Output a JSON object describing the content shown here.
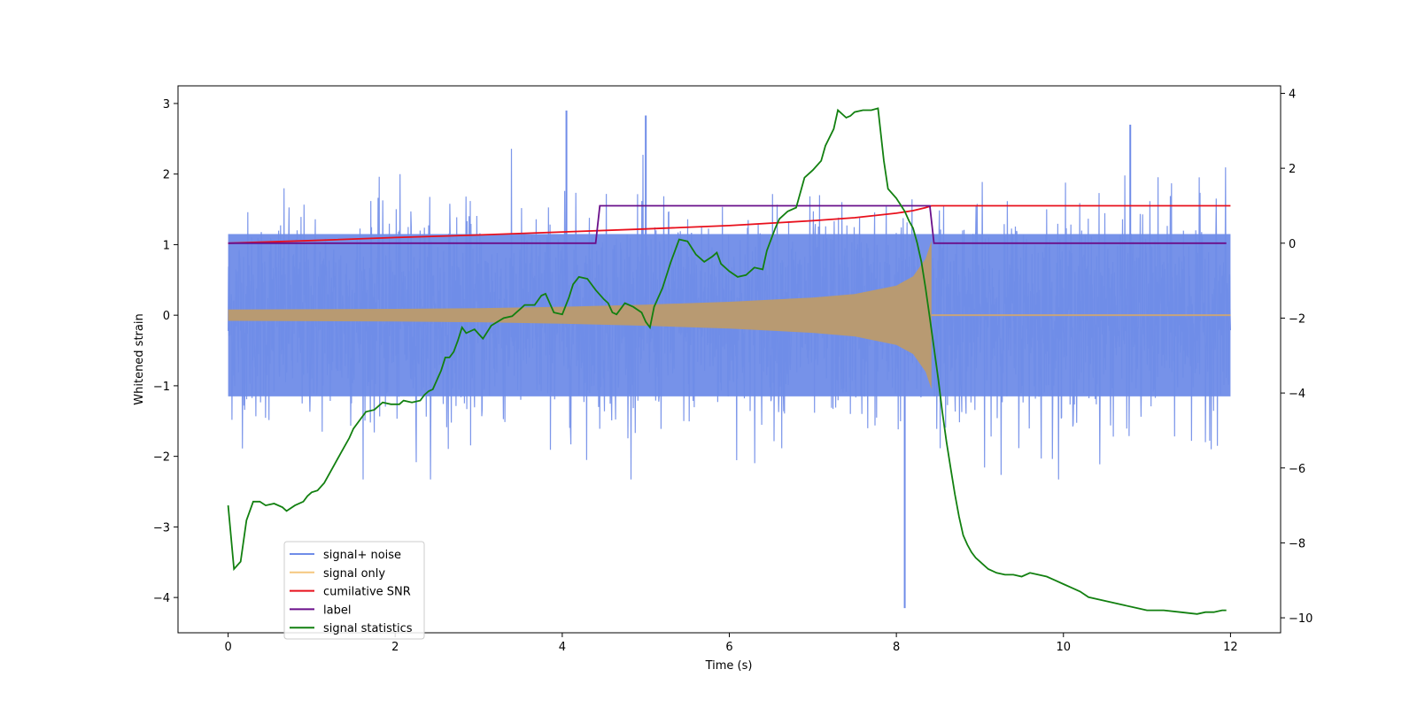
{
  "chart_data": {
    "type": "line",
    "xlabel": "Time (s)",
    "ylabel": "Whitened strain",
    "xlim": [
      -0.6,
      12.6
    ],
    "ylim": [
      -4.5,
      3.25
    ],
    "y2lim": [
      -10.4,
      4.2
    ],
    "x_ticks": [
      0,
      2,
      4,
      6,
      8,
      10,
      12
    ],
    "y_ticks": [
      -4,
      -3,
      -2,
      -1,
      0,
      1,
      2,
      3
    ],
    "y2_ticks": [
      -10,
      -8,
      -6,
      -4,
      -2,
      0,
      2,
      4
    ],
    "x_tick_labels": [
      "0",
      "2",
      "4",
      "6",
      "8",
      "10",
      "12"
    ],
    "y_tick_labels": [
      "−4",
      "−3",
      "−2",
      "−1",
      "0",
      "1",
      "2",
      "3"
    ],
    "y2_tick_labels": [
      "−10",
      "−8",
      "−6",
      "−4",
      "−2",
      "0",
      "2",
      "4"
    ],
    "legend_position": "lower-left",
    "series": [
      {
        "name": "signal+ noise",
        "axis": "left",
        "color": "#6f8ce8",
        "kind": "noisy-band",
        "x_range": [
          0,
          12
        ],
        "band_low": -1.15,
        "band_high": 1.15,
        "spike_max": 2.9,
        "spike_min": -4.15,
        "notable_peaks": [
          {
            "x": 4.05,
            "y": 2.9
          },
          {
            "x": 5.0,
            "y": 2.83
          },
          {
            "x": 8.1,
            "y": -4.15
          },
          {
            "x": 10.8,
            "y": 2.7
          }
        ]
      },
      {
        "name": "signal only",
        "axis": "left",
        "color": "#e0a050",
        "kind": "chirp-envelope",
        "envelope": {
          "x": [
            0,
            1,
            2,
            3,
            4,
            5,
            6,
            7,
            7.5,
            8,
            8.2,
            8.35,
            8.42
          ],
          "amp": [
            0.08,
            0.085,
            0.09,
            0.1,
            0.12,
            0.15,
            0.19,
            0.25,
            0.3,
            0.42,
            0.55,
            0.8,
            1.05
          ]
        },
        "post_merger_value": 0.0,
        "post_merger_x": [
          8.42,
          12
        ]
      },
      {
        "name": "cumilative SNR",
        "axis": "right",
        "color": "#e8101c",
        "x": [
          0,
          1,
          2,
          3,
          4,
          5,
          6,
          7,
          7.5,
          8,
          8.2,
          8.35,
          8.42,
          8.43,
          12
        ],
        "y": [
          0,
          0.07,
          0.15,
          0.22,
          0.3,
          0.38,
          0.47,
          0.6,
          0.68,
          0.8,
          0.87,
          0.95,
          1.0,
          1.0,
          1.0
        ]
      },
      {
        "name": "label",
        "axis": "right",
        "color": "#6a0f8a",
        "x": [
          0,
          4.4,
          4.45,
          8.4,
          8.45,
          11.95
        ],
        "y": [
          0,
          0,
          1,
          1,
          0,
          0
        ]
      },
      {
        "name": "signal statistics",
        "axis": "right",
        "color": "#128010",
        "x": [
          0,
          0.07,
          0.15,
          0.22,
          0.3,
          0.38,
          0.45,
          0.55,
          0.65,
          0.7,
          0.8,
          0.9,
          0.95,
          1.0,
          1.07,
          1.15,
          1.25,
          1.35,
          1.45,
          1.5,
          1.6,
          1.65,
          1.75,
          1.85,
          1.95,
          2.05,
          2.1,
          2.2,
          2.3,
          2.35,
          2.4,
          2.45,
          2.55,
          2.6,
          2.65,
          2.7,
          2.75,
          2.8,
          2.85,
          2.95,
          3.05,
          3.15,
          3.3,
          3.4,
          3.45,
          3.5,
          3.55,
          3.6,
          3.67,
          3.75,
          3.8,
          3.9,
          4.0,
          4.08,
          4.13,
          4.2,
          4.3,
          4.4,
          4.5,
          4.55,
          4.6,
          4.65,
          4.75,
          4.85,
          4.95,
          5.0,
          5.05,
          5.1,
          5.2,
          5.3,
          5.4,
          5.5,
          5.6,
          5.7,
          5.8,
          5.85,
          5.9,
          6.0,
          6.1,
          6.2,
          6.3,
          6.4,
          6.45,
          6.55,
          6.6,
          6.7,
          6.8,
          6.9,
          7.0,
          7.1,
          7.15,
          7.25,
          7.3,
          7.4,
          7.45,
          7.5,
          7.6,
          7.7,
          7.78,
          7.85,
          7.9,
          8.0,
          8.1,
          8.15,
          8.2,
          8.25,
          8.3,
          8.35,
          8.4,
          8.45,
          8.5,
          8.55,
          8.6,
          8.65,
          8.7,
          8.75,
          8.8,
          8.85,
          8.9,
          8.95,
          9.0,
          9.05,
          9.1,
          9.2,
          9.3,
          9.4,
          9.5,
          9.6,
          9.7,
          9.8,
          9.9,
          10.0,
          10.1,
          10.2,
          10.3,
          10.5,
          10.7,
          10.9,
          11.0,
          11.2,
          11.4,
          11.6,
          11.7,
          11.8,
          11.9,
          11.95
        ],
        "y": [
          -7.0,
          -8.7,
          -8.5,
          -7.4,
          -6.9,
          -6.9,
          -7.0,
          -6.95,
          -7.05,
          -7.15,
          -7.0,
          -6.9,
          -6.75,
          -6.65,
          -6.6,
          -6.4,
          -6.0,
          -5.6,
          -5.2,
          -4.95,
          -4.65,
          -4.5,
          -4.45,
          -4.25,
          -4.3,
          -4.3,
          -4.2,
          -4.25,
          -4.2,
          -4.05,
          -3.95,
          -3.9,
          -3.4,
          -3.05,
          -3.05,
          -2.9,
          -2.6,
          -2.25,
          -2.4,
          -2.3,
          -2.55,
          -2.2,
          -2.0,
          -1.95,
          -1.85,
          -1.75,
          -1.65,
          -1.65,
          -1.65,
          -1.4,
          -1.35,
          -1.85,
          -1.9,
          -1.45,
          -1.1,
          -0.9,
          -0.95,
          -1.25,
          -1.5,
          -1.6,
          -1.85,
          -1.9,
          -1.6,
          -1.7,
          -1.85,
          -2.1,
          -2.25,
          -1.7,
          -1.2,
          -0.5,
          0.1,
          0.05,
          -0.3,
          -0.5,
          -0.35,
          -0.25,
          -0.55,
          -0.75,
          -0.9,
          -0.85,
          -0.65,
          -0.7,
          -0.2,
          0.4,
          0.65,
          0.85,
          0.95,
          1.75,
          1.95,
          2.2,
          2.6,
          3.05,
          3.55,
          3.35,
          3.4,
          3.5,
          3.55,
          3.55,
          3.6,
          2.2,
          1.45,
          1.2,
          0.85,
          0.6,
          0.4,
          0.0,
          -0.5,
          -1.2,
          -2.0,
          -2.8,
          -3.6,
          -4.5,
          -5.3,
          -6.0,
          -6.7,
          -7.3,
          -7.8,
          -8.05,
          -8.25,
          -8.4,
          -8.5,
          -8.6,
          -8.7,
          -8.8,
          -8.85,
          -8.85,
          -8.9,
          -8.8,
          -8.85,
          -8.9,
          -9.0,
          -9.1,
          -9.2,
          -9.3,
          -9.45,
          -9.55,
          -9.65,
          -9.75,
          -9.8,
          -9.8,
          -9.85,
          -9.9,
          -9.85,
          -9.85,
          -9.8,
          -9.8
        ]
      }
    ],
    "legend": [
      "signal+ noise",
      "signal only",
      "cumilative SNR",
      "label",
      "signal statistics"
    ]
  }
}
